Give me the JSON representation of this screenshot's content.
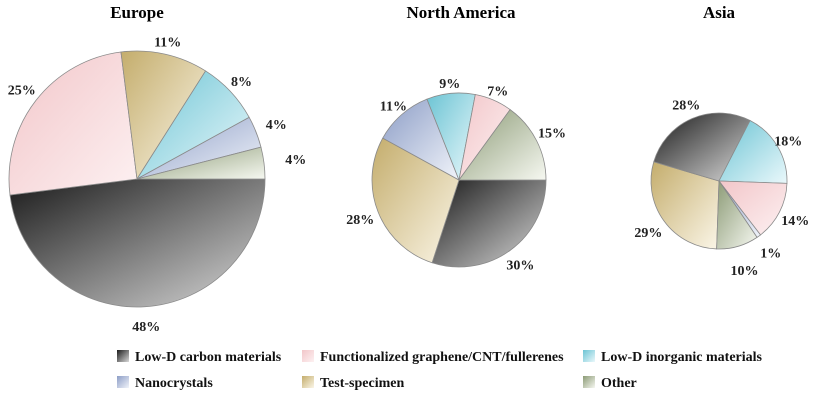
{
  "chart_data": [
    {
      "type": "pie",
      "title": "Europe",
      "slices": [
        {
          "category": "Low-D carbon materials",
          "value": 48,
          "label": "48%"
        },
        {
          "category": "Functionalized graphene/CNT/fullerenes",
          "value": 25,
          "label": "25%"
        },
        {
          "category": "Test-specimen",
          "value": 11,
          "label": "11%"
        },
        {
          "category": "Low-D inorganic materials",
          "value": 8,
          "label": "8%"
        },
        {
          "category": "Nanocrystals",
          "value": 4,
          "label": "4%"
        },
        {
          "category": "Other",
          "value": 4,
          "label": "4%"
        }
      ]
    },
    {
      "type": "pie",
      "title": "North America",
      "slices": [
        {
          "category": "Low-D carbon materials",
          "value": 30,
          "label": "30%"
        },
        {
          "category": "Test-specimen",
          "value": 28,
          "label": "28%"
        },
        {
          "category": "Nanocrystals",
          "value": 11,
          "label": "11%"
        },
        {
          "category": "Low-D inorganic materials",
          "value": 9,
          "label": "9%"
        },
        {
          "category": "Functionalized graphene/CNT/fullerenes",
          "value": 7,
          "label": "7%"
        },
        {
          "category": "Other",
          "value": 15,
          "label": "15%"
        }
      ]
    },
    {
      "type": "pie",
      "title": "Asia",
      "slices": [
        {
          "category": "Test-specimen",
          "value": 29,
          "label": "29%"
        },
        {
          "category": "Low-D carbon materials",
          "value": 28,
          "label": "28%"
        },
        {
          "category": "Low-D inorganic materials",
          "value": 18,
          "label": "18%"
        },
        {
          "category": "Functionalized graphene/CNT/fullerenes",
          "value": 14,
          "label": "14%"
        },
        {
          "category": "Nanocrystals",
          "value": 1,
          "label": "1%"
        },
        {
          "category": "Other",
          "value": 10,
          "label": "10%"
        }
      ]
    }
  ],
  "legend": {
    "placement": "bottom",
    "items": [
      {
        "label": "Low-D carbon materials",
        "color_dark": "#1a1a1a",
        "color_light": "#d9d9d9"
      },
      {
        "label": "Functionalized graphene/CNT/fullerenes",
        "color_dark": "#f2c6c9",
        "color_light": "#fdf1f2"
      },
      {
        "label": "Low-D inorganic materials",
        "color_dark": "#6cc4d4",
        "color_light": "#eaf8fb"
      },
      {
        "label": "Nanocrystals",
        "color_dark": "#8c9dc6",
        "color_light": "#f1f4fa"
      },
      {
        "label": "Test-specimen",
        "color_dark": "#c4ad6c",
        "color_light": "#fbf6e8"
      },
      {
        "label": "Other",
        "color_dark": "#8b9a75",
        "color_light": "#f6f8f1"
      }
    ]
  }
}
